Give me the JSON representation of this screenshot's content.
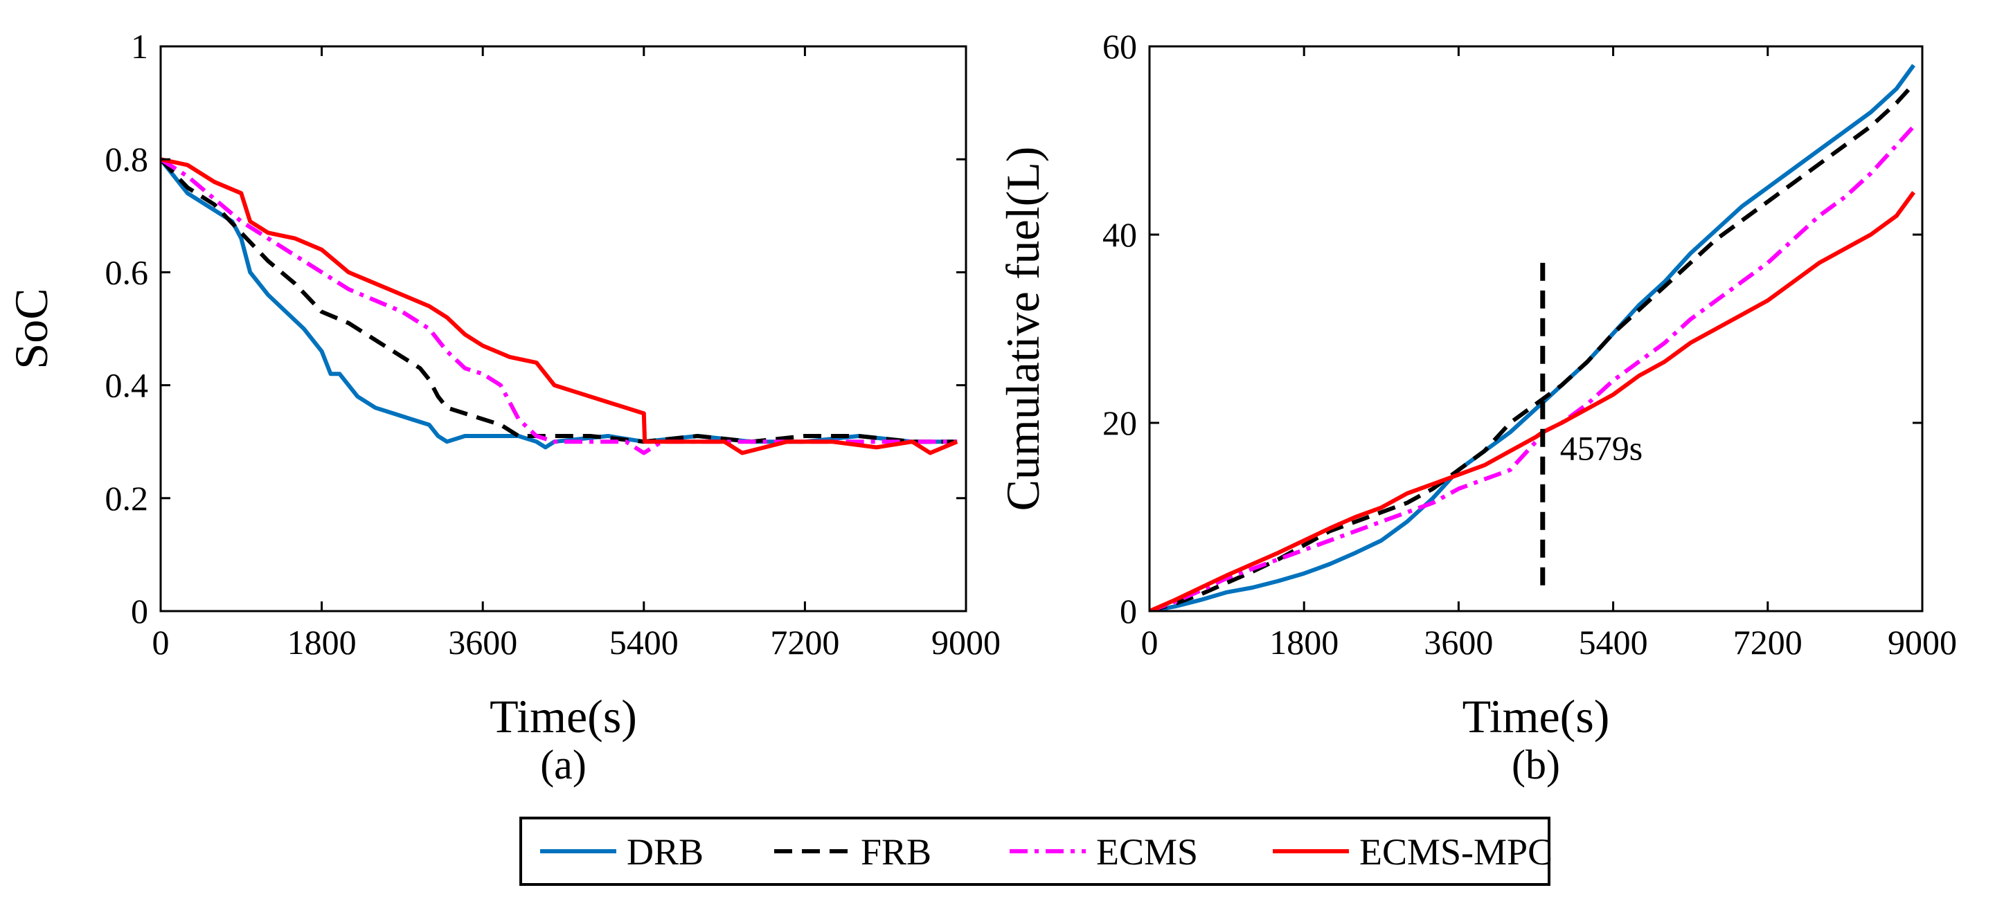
{
  "colors": {
    "DRB": "#0072BD",
    "FRB": "#000000",
    "ECMS": "#FF00FF",
    "ECMS-MPC": "#FF0000"
  },
  "legend": {
    "items": [
      {
        "name": "DRB",
        "style": "solid"
      },
      {
        "name": "FRB",
        "style": "dashed"
      },
      {
        "name": "ECMS",
        "style": "dashdot"
      },
      {
        "name": "ECMS-MPC",
        "style": "solid"
      }
    ],
    "placement": "bottom-center"
  },
  "chart_data": [
    {
      "type": "line",
      "caption": "(a)",
      "xlabel": "Time(s)",
      "ylabel": "SoC",
      "xlim": [
        0,
        9000
      ],
      "ylim": [
        0,
        1
      ],
      "xticks": [
        0,
        1800,
        3600,
        5400,
        7200,
        9000
      ],
      "yticks": [
        0,
        0.2,
        0.4,
        0.6,
        0.8,
        1
      ],
      "xtick_labels": [
        "0",
        "1800",
        "3600",
        "5400",
        "7200",
        "9000"
      ],
      "ytick_labels": [
        "0",
        "0.2",
        "0.4",
        "0.6",
        "0.8",
        "1"
      ],
      "series": [
        {
          "name": "DRB",
          "x": [
            0,
            300,
            600,
            800,
            900,
            1000,
            1200,
            1400,
            1600,
            1800,
            1900,
            2000,
            2200,
            2400,
            2600,
            2800,
            3000,
            3100,
            3200,
            3400,
            3600,
            3800,
            4000,
            4200,
            4300,
            4400,
            5000,
            5400,
            6000,
            6600,
            7200,
            7800,
            8400,
            8900
          ],
          "y": [
            0.8,
            0.74,
            0.71,
            0.69,
            0.66,
            0.6,
            0.56,
            0.53,
            0.5,
            0.46,
            0.42,
            0.42,
            0.38,
            0.36,
            0.35,
            0.34,
            0.33,
            0.31,
            0.3,
            0.31,
            0.31,
            0.31,
            0.31,
            0.3,
            0.29,
            0.3,
            0.31,
            0.3,
            0.31,
            0.3,
            0.3,
            0.31,
            0.3,
            0.3
          ]
        },
        {
          "name": "FRB",
          "x": [
            0,
            300,
            600,
            900,
            1200,
            1500,
            1800,
            2100,
            2400,
            2700,
            2900,
            3000,
            3100,
            3200,
            3400,
            3600,
            3800,
            4000,
            4200,
            4400,
            4800,
            5400,
            6000,
            6600,
            7200,
            7800,
            8400,
            8900
          ],
          "y": [
            0.8,
            0.75,
            0.72,
            0.67,
            0.62,
            0.58,
            0.53,
            0.51,
            0.48,
            0.45,
            0.43,
            0.41,
            0.38,
            0.36,
            0.35,
            0.34,
            0.33,
            0.31,
            0.31,
            0.31,
            0.31,
            0.3,
            0.31,
            0.3,
            0.31,
            0.31,
            0.3,
            0.3
          ]
        },
        {
          "name": "ECMS",
          "x": [
            0,
            300,
            600,
            900,
            1200,
            1500,
            1800,
            2100,
            2400,
            2700,
            3000,
            3200,
            3400,
            3600,
            3800,
            3900,
            4000,
            4200,
            4400,
            4800,
            5200,
            5400,
            5600,
            6000,
            6600,
            7200,
            7800,
            8400,
            8900
          ],
          "y": [
            0.8,
            0.77,
            0.73,
            0.69,
            0.66,
            0.63,
            0.6,
            0.57,
            0.55,
            0.53,
            0.5,
            0.46,
            0.43,
            0.42,
            0.4,
            0.37,
            0.34,
            0.31,
            0.3,
            0.3,
            0.3,
            0.28,
            0.3,
            0.3,
            0.3,
            0.3,
            0.3,
            0.3,
            0.3
          ]
        },
        {
          "name": "ECMS-MPC",
          "x": [
            0,
            300,
            600,
            900,
            1000,
            1200,
            1500,
            1800,
            2100,
            2400,
            2700,
            3000,
            3200,
            3400,
            3600,
            3900,
            4200,
            4400,
            4600,
            5000,
            5400,
            5410,
            5800,
            6300,
            6500,
            7000,
            7500,
            8000,
            8400,
            8600,
            8900
          ],
          "y": [
            0.8,
            0.79,
            0.76,
            0.74,
            0.69,
            0.67,
            0.66,
            0.64,
            0.6,
            0.58,
            0.56,
            0.54,
            0.52,
            0.49,
            0.47,
            0.45,
            0.44,
            0.4,
            0.39,
            0.37,
            0.35,
            0.3,
            0.3,
            0.3,
            0.28,
            0.3,
            0.3,
            0.29,
            0.3,
            0.28,
            0.3
          ]
        }
      ]
    },
    {
      "type": "line",
      "caption": "(b)",
      "xlabel": "Time(s)",
      "ylabel": "Cumulative fuel(L)",
      "xlim": [
        0,
        9000
      ],
      "ylim": [
        0,
        60
      ],
      "xticks": [
        0,
        1800,
        3600,
        5400,
        7200,
        9000
      ],
      "yticks": [
        0,
        20,
        40,
        60
      ],
      "xtick_labels": [
        "0",
        "1800",
        "3600",
        "5400",
        "7200",
        "9000"
      ],
      "ytick_labels": [
        "0",
        "20",
        "40",
        "60"
      ],
      "annotation": {
        "x": 4579,
        "y_range": [
          2,
          37
        ],
        "label": "4579s",
        "style": "dashed"
      },
      "series": [
        {
          "name": "DRB",
          "x": [
            0,
            300,
            600,
            900,
            1200,
            1500,
            1800,
            2100,
            2400,
            2700,
            3000,
            3300,
            3600,
            3900,
            4200,
            4500,
            4800,
            5100,
            5400,
            5700,
            6000,
            6300,
            6600,
            6900,
            7200,
            7500,
            7800,
            8100,
            8400,
            8700,
            8900
          ],
          "y": [
            0,
            0.5,
            1.2,
            2,
            2.5,
            3.2,
            4,
            5,
            6.2,
            7.5,
            9.5,
            12,
            15,
            17,
            19,
            21.5,
            24,
            26.5,
            29.5,
            32.5,
            35,
            38,
            40.5,
            43,
            45,
            47,
            49,
            51,
            53,
            55.5,
            58
          ]
        },
        {
          "name": "FRB",
          "x": [
            0,
            300,
            600,
            900,
            1200,
            1500,
            1800,
            2100,
            2400,
            2700,
            3000,
            3300,
            3600,
            3900,
            4200,
            4500,
            4800,
            5100,
            5400,
            5700,
            6000,
            6300,
            6600,
            6900,
            7200,
            7500,
            7800,
            8100,
            8400,
            8700,
            8900
          ],
          "y": [
            0,
            0.8,
            1.8,
            3,
            4.2,
            5.5,
            7,
            8.5,
            9.5,
            10.5,
            11.5,
            13,
            15,
            17,
            20,
            22,
            24,
            26.5,
            29.5,
            32,
            34.5,
            37,
            39.5,
            41.5,
            43.5,
            45.5,
            47.5,
            49.5,
            51.5,
            54,
            56
          ]
        },
        {
          "name": "ECMS",
          "x": [
            0,
            300,
            600,
            900,
            1200,
            1500,
            1800,
            2100,
            2400,
            2700,
            3000,
            3300,
            3600,
            3900,
            4200,
            4500,
            4579,
            4800,
            5100,
            5400,
            5700,
            6000,
            6300,
            6600,
            6900,
            7200,
            7500,
            7800,
            8100,
            8400,
            8700,
            8900
          ],
          "y": [
            0,
            1,
            2.2,
            3.5,
            4.5,
            5.5,
            6.5,
            7.5,
            8.5,
            9.5,
            10.5,
            11.5,
            13,
            14,
            15,
            18,
            19,
            20,
            22,
            24.5,
            26.5,
            28.5,
            31,
            33,
            35,
            37,
            39.5,
            42,
            44,
            46.5,
            49.5,
            51.5
          ]
        },
        {
          "name": "ECMS-MPC",
          "x": [
            0,
            300,
            600,
            900,
            1200,
            1500,
            1800,
            2100,
            2400,
            2700,
            3000,
            3300,
            3600,
            3900,
            4200,
            4500,
            4579,
            4800,
            5100,
            5400,
            5700,
            6000,
            6300,
            6600,
            6900,
            7200,
            7500,
            7800,
            8100,
            8400,
            8700,
            8900
          ],
          "y": [
            0,
            1.2,
            2.5,
            3.8,
            5,
            6.2,
            7.5,
            8.8,
            10,
            11,
            12.5,
            13.5,
            14.5,
            15.5,
            17,
            18.5,
            19,
            20,
            21.5,
            23,
            25,
            26.5,
            28.5,
            30,
            31.5,
            33,
            35,
            37,
            38.5,
            40,
            42,
            44.5
          ]
        }
      ]
    }
  ]
}
